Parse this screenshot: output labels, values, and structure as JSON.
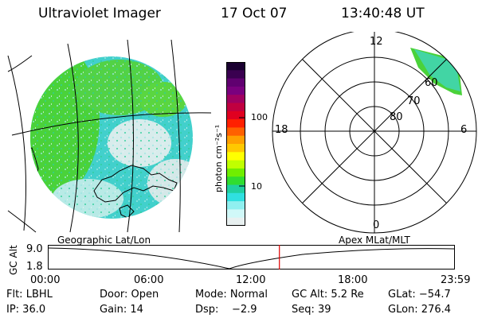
{
  "header": {
    "instrument": "Ultraviolet Imager",
    "date": "17 Oct 07",
    "time": "13:40:48 UT"
  },
  "colorbar": {
    "unit_label": "photon cm⁻²s⁻¹",
    "ticks": [
      "100",
      "10"
    ],
    "colors": [
      "#1a0030",
      "#3a0050",
      "#600070",
      "#7a007e",
      "#a00060",
      "#c00040",
      "#e00020",
      "#ff2000",
      "#ff6000",
      "#ffa000",
      "#ffc800",
      "#ffff00",
      "#c0ff00",
      "#70ee00",
      "#30dd30",
      "#20d0a0",
      "#30e0e0",
      "#90f0f0",
      "#d0f8f8",
      "#e8f0f0"
    ]
  },
  "polar": {
    "top_label": "12",
    "bottom_label": "0",
    "left_label": "18",
    "right_label": "6",
    "ring_labels": [
      "60",
      "70",
      "80"
    ]
  },
  "timeline": {
    "left_header": "Geographic Lat/Lon",
    "right_header": "Apex MLat/MLT",
    "axis_label": "GC Alt",
    "y_top": "9.0",
    "y_bottom": "1.8",
    "x_ticks": [
      "00:00",
      "06:00",
      "12:00",
      "18:00",
      "23:59"
    ],
    "marker_hour": 13.68
  },
  "status": {
    "row1": [
      "Flt: LBHL",
      "Door: Open",
      "Mode: Normal",
      "GC Alt: 5.2 Re",
      "GLat: −54.7"
    ],
    "row2": [
      "IP: 36.0",
      "Gain: 14",
      "Dsp:    −2.9",
      "Seq: 39",
      "GLon: 276.4"
    ]
  },
  "colors": {
    "glow_green": "#4ad23a",
    "glow_cyan": "#3ed6d2",
    "glow_pale": "#cfe8e8",
    "marker": "#e00000"
  }
}
